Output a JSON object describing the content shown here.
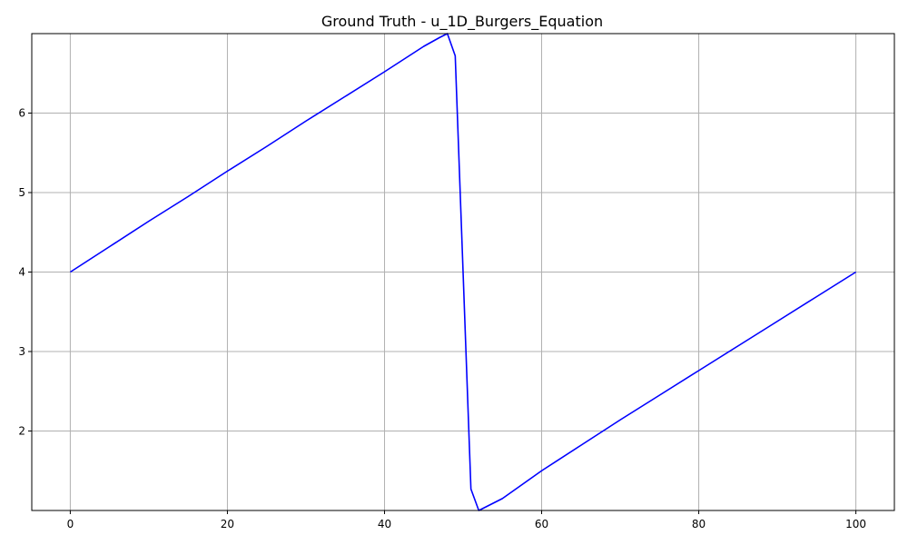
{
  "chart_data": {
    "type": "line",
    "title": "Ground Truth - u_1D_Burgers_Equation",
    "xlabel": "",
    "ylabel": "",
    "xlim": [
      -4.9,
      104.9
    ],
    "ylim": [
      1.0,
      7.0
    ],
    "xticks": [
      0,
      20,
      40,
      60,
      80,
      100
    ],
    "yticks": [
      2,
      3,
      4,
      5,
      6
    ],
    "grid": true,
    "series": [
      {
        "color": "#0000ff",
        "x": [
          0,
          5,
          10,
          15,
          20,
          25,
          30,
          35,
          40,
          45,
          47,
          48,
          49,
          50,
          51,
          52,
          53,
          55,
          60,
          65,
          70,
          75,
          80,
          85,
          90,
          95,
          100
        ],
        "y": [
          4.0,
          4.32,
          4.64,
          4.95,
          5.27,
          5.58,
          5.9,
          6.21,
          6.52,
          6.84,
          6.95,
          7.0,
          6.72,
          4.0,
          1.27,
          1.0,
          1.05,
          1.15,
          1.5,
          1.82,
          2.14,
          2.45,
          2.76,
          3.07,
          3.38,
          3.69,
          4.0
        ]
      }
    ]
  }
}
